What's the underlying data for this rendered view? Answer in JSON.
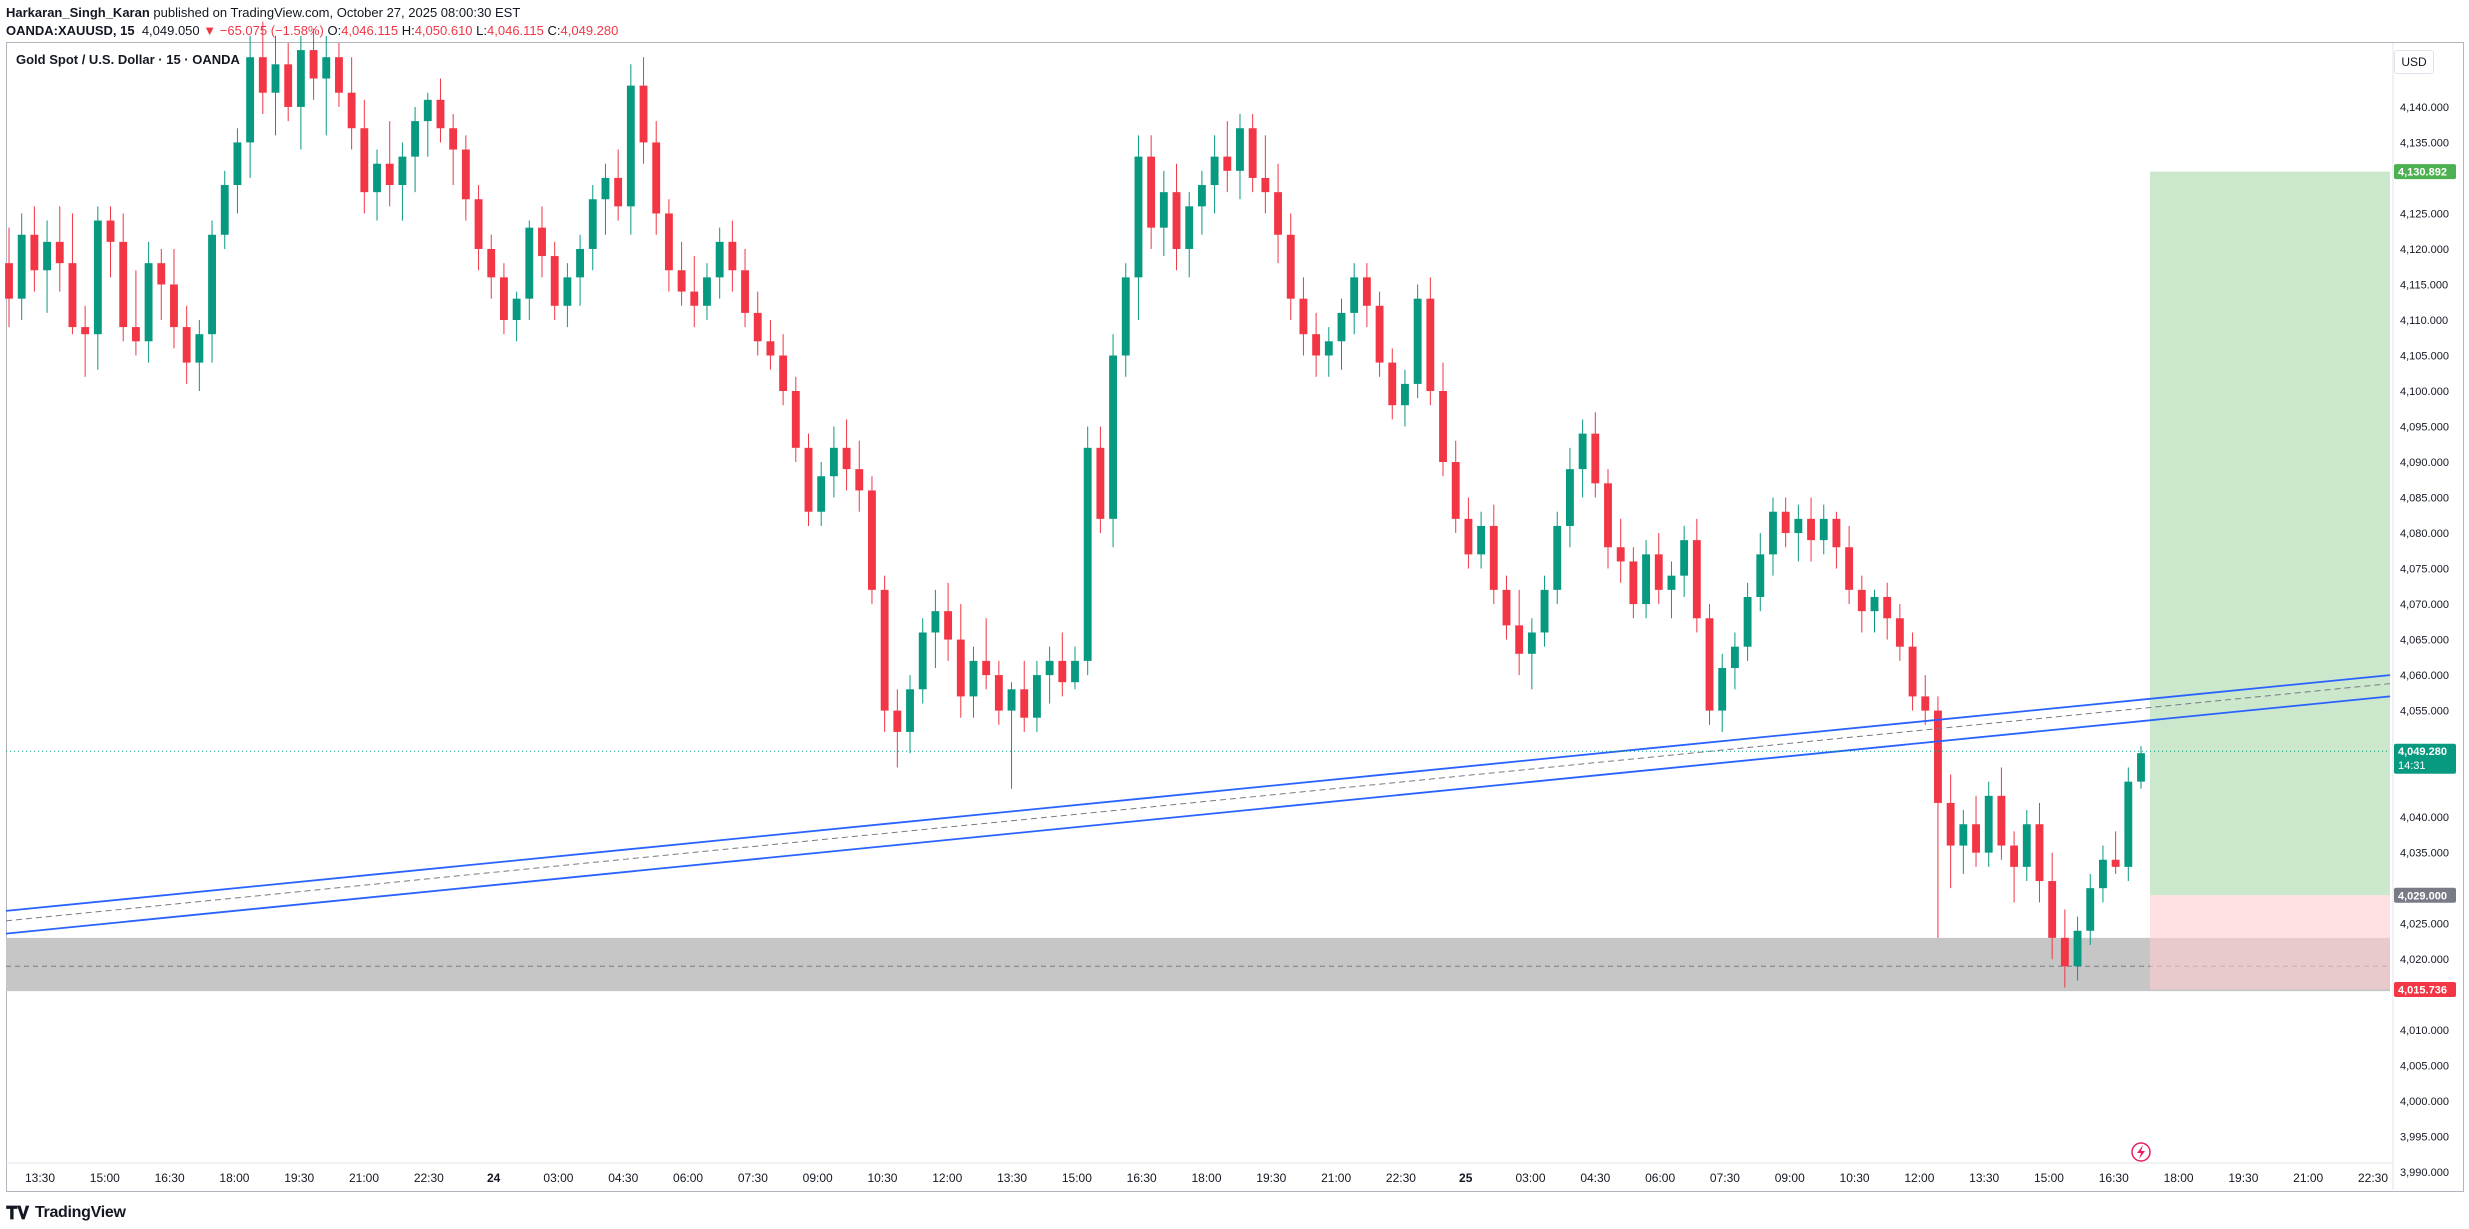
{
  "header": {
    "author": "Harkaran_Singh_Karan",
    "published_text": "published on TradingView.com, October 27, 2025 08:00:30 EST",
    "symbol": "OANDA:XAUUSD, 15",
    "last_price": "4,049.050",
    "change": "▼ −65.075 (−1.58%)",
    "open_label": "O:",
    "open": "4,046.115",
    "high_label": "H:",
    "high": "4,050.610",
    "low_label": "L:",
    "low": "4,046.115",
    "close_label": "C:",
    "close": "4,049.280"
  },
  "legend": {
    "title": "Gold Spot / U.S. Dollar · 15 · OANDA"
  },
  "price_axis": {
    "currency": "USD",
    "ticks": [
      {
        "value": 4140,
        "label": "4,140.000"
      },
      {
        "value": 4135,
        "label": "4,135.000"
      },
      {
        "value": 4125,
        "label": "4,125.000"
      },
      {
        "value": 4120,
        "label": "4,120.000"
      },
      {
        "value": 4115,
        "label": "4,115.000"
      },
      {
        "value": 4110,
        "label": "4,110.000"
      },
      {
        "value": 4105,
        "label": "4,105.000"
      },
      {
        "value": 4100,
        "label": "4,100.000"
      },
      {
        "value": 4095,
        "label": "4,095.000"
      },
      {
        "value": 4090,
        "label": "4,090.000"
      },
      {
        "value": 4085,
        "label": "4,085.000"
      },
      {
        "value": 4080,
        "label": "4,080.000"
      },
      {
        "value": 4075,
        "label": "4,075.000"
      },
      {
        "value": 4070,
        "label": "4,070.000"
      },
      {
        "value": 4065,
        "label": "4,065.000"
      },
      {
        "value": 4060,
        "label": "4,060.000"
      },
      {
        "value": 4055,
        "label": "4,055.000"
      },
      {
        "value": 4040,
        "label": "4,040.000"
      },
      {
        "value": 4035,
        "label": "4,035.000"
      },
      {
        "value": 4025,
        "label": "4,025.000"
      },
      {
        "value": 4020,
        "label": "4,020.000"
      },
      {
        "value": 4010,
        "label": "4,010.000"
      },
      {
        "value": 4005,
        "label": "4,005.000"
      },
      {
        "value": 4000,
        "label": "4,000.000"
      },
      {
        "value": 3995,
        "label": "3,995.000"
      },
      {
        "value": 3990,
        "label": "3,990.000"
      }
    ],
    "badges": [
      {
        "value": 4130.892,
        "label": "4,130.892",
        "color": "#4caf50",
        "sub": ""
      },
      {
        "value": 4049.28,
        "label": "4,049.280",
        "color": "#089981",
        "sub": "14:31"
      },
      {
        "value": 4029.0,
        "label": "4,029.000",
        "color": "#787b86",
        "sub": ""
      },
      {
        "value": 4015.736,
        "label": "4,015.736",
        "color": "#f23645",
        "sub": ""
      }
    ]
  },
  "time_axis": {
    "labels": [
      "13:30",
      "15:00",
      "16:30",
      "18:00",
      "19:30",
      "21:00",
      "22:30",
      "24",
      "03:00",
      "04:30",
      "06:00",
      "07:30",
      "09:00",
      "10:30",
      "12:00",
      "13:30",
      "15:00",
      "16:30",
      "18:00",
      "19:30",
      "21:00",
      "22:30",
      "25",
      "03:00",
      "04:30",
      "06:00",
      "07:30",
      "09:00",
      "10:30",
      "12:00",
      "13:30",
      "15:00",
      "16:30",
      "18:00",
      "19:30",
      "21:00",
      "22:30"
    ],
    "bold": [
      "24",
      "25"
    ]
  },
  "position": {
    "entry": 4029.0,
    "target": 4130.892,
    "stop": 4015.736
  },
  "zone": {
    "top": 4023.0,
    "bottom": 4015.5,
    "mid": 4019.0
  },
  "colors": {
    "up": "#089981",
    "down": "#f23645",
    "trend": "#2962ff",
    "profit": "#c8e6c9",
    "loss": "#ffcdd2",
    "zone": "#c6c6c6"
  },
  "footer": {
    "brand": "TradingView",
    "icon": "tradingview-logo-icon"
  },
  "chart_data": {
    "type": "candlestick",
    "title": "Gold Spot / U.S. Dollar · 15 · OANDA",
    "ylim": [
      3987.5,
      4149.0
    ],
    "candles": [
      [
        4118,
        4123,
        4109,
        4113
      ],
      [
        4113,
        4125,
        4110,
        4122
      ],
      [
        4122,
        4126,
        4114,
        4117
      ],
      [
        4117,
        4124,
        4111,
        4121
      ],
      [
        4121,
        4126,
        4114,
        4118
      ],
      [
        4118,
        4125,
        4108,
        4109
      ],
      [
        4109,
        4112,
        4102,
        4108
      ],
      [
        4108,
        4126,
        4103,
        4124
      ],
      [
        4124,
        4126,
        4116,
        4121
      ],
      [
        4121,
        4125,
        4107,
        4109
      ],
      [
        4109,
        4117,
        4105,
        4107
      ],
      [
        4107,
        4121,
        4104,
        4118
      ],
      [
        4118,
        4120,
        4110,
        4115
      ],
      [
        4115,
        4120,
        4106,
        4109
      ],
      [
        4109,
        4112,
        4101,
        4104
      ],
      [
        4104,
        4110,
        4100,
        4108
      ],
      [
        4108,
        4124,
        4104,
        4122
      ],
      [
        4122,
        4131,
        4120,
        4129
      ],
      [
        4129,
        4137,
        4125,
        4135
      ],
      [
        4135,
        4150,
        4130,
        4147
      ],
      [
        4147,
        4152,
        4139,
        4142
      ],
      [
        4142,
        4150,
        4136,
        4146
      ],
      [
        4146,
        4149,
        4138,
        4140
      ],
      [
        4140,
        4150,
        4134,
        4148
      ],
      [
        4148,
        4151,
        4141,
        4144
      ],
      [
        4144,
        4150,
        4136,
        4147
      ],
      [
        4147,
        4149,
        4140,
        4142
      ],
      [
        4142,
        4147,
        4134,
        4137
      ],
      [
        4137,
        4141,
        4125,
        4128
      ],
      [
        4128,
        4134,
        4124,
        4132
      ],
      [
        4132,
        4138,
        4126,
        4129
      ],
      [
        4129,
        4135,
        4124,
        4133
      ],
      [
        4133,
        4140,
        4128,
        4138
      ],
      [
        4138,
        4142,
        4133,
        4141
      ],
      [
        4141,
        4144,
        4135,
        4137
      ],
      [
        4137,
        4139,
        4129,
        4134
      ],
      [
        4134,
        4136,
        4124,
        4127
      ],
      [
        4127,
        4129,
        4117,
        4120
      ],
      [
        4120,
        4122,
        4113,
        4116
      ],
      [
        4116,
        4118,
        4108,
        4110
      ],
      [
        4110,
        4114,
        4107,
        4113
      ],
      [
        4113,
        4124,
        4110,
        4123
      ],
      [
        4123,
        4126,
        4116,
        4119
      ],
      [
        4119,
        4121,
        4110,
        4112
      ],
      [
        4112,
        4118,
        4109,
        4116
      ],
      [
        4116,
        4122,
        4112,
        4120
      ],
      [
        4120,
        4129,
        4117,
        4127
      ],
      [
        4127,
        4132,
        4122,
        4130
      ],
      [
        4130,
        4134,
        4124,
        4126
      ],
      [
        4126,
        4146,
        4122,
        4143
      ],
      [
        4143,
        4147,
        4132,
        4135
      ],
      [
        4135,
        4138,
        4122,
        4125
      ],
      [
        4125,
        4127,
        4114,
        4117
      ],
      [
        4117,
        4121,
        4112,
        4114
      ],
      [
        4114,
        4119,
        4109,
        4112
      ],
      [
        4112,
        4118,
        4110,
        4116
      ],
      [
        4116,
        4123,
        4113,
        4121
      ],
      [
        4121,
        4124,
        4114,
        4117
      ],
      [
        4117,
        4120,
        4109,
        4111
      ],
      [
        4111,
        4114,
        4105,
        4107
      ],
      [
        4107,
        4110,
        4103,
        4105
      ],
      [
        4105,
        4108,
        4098,
        4100
      ],
      [
        4100,
        4102,
        4090,
        4092
      ],
      [
        4092,
        4094,
        4081,
        4083
      ],
      [
        4083,
        4090,
        4081,
        4088
      ],
      [
        4088,
        4095,
        4085,
        4092
      ],
      [
        4092,
        4096,
        4086,
        4089
      ],
      [
        4089,
        4093,
        4083,
        4086
      ],
      [
        4086,
        4088,
        4070,
        4072
      ],
      [
        4072,
        4074,
        4052,
        4055
      ],
      [
        4055,
        4058,
        4047,
        4052
      ],
      [
        4052,
        4060,
        4049,
        4058
      ],
      [
        4058,
        4068,
        4056,
        4066
      ],
      [
        4066,
        4072,
        4061,
        4069
      ],
      [
        4069,
        4073,
        4062,
        4065
      ],
      [
        4065,
        4070,
        4054,
        4057
      ],
      [
        4057,
        4064,
        4054,
        4062
      ],
      [
        4062,
        4068,
        4058,
        4060
      ],
      [
        4060,
        4062,
        4053,
        4055
      ],
      [
        4055,
        4059,
        4044,
        4058
      ],
      [
        4058,
        4062,
        4052,
        4054
      ],
      [
        4054,
        4062,
        4052,
        4060
      ],
      [
        4060,
        4064,
        4056,
        4062
      ],
      [
        4062,
        4066,
        4057,
        4059
      ],
      [
        4059,
        4064,
        4058,
        4062
      ],
      [
        4062,
        4095,
        4060,
        4092
      ],
      [
        4092,
        4095,
        4080,
        4082
      ],
      [
        4082,
        4108,
        4078,
        4105
      ],
      [
        4105,
        4118,
        4102,
        4116
      ],
      [
        4116,
        4136,
        4110,
        4133
      ],
      [
        4133,
        4136,
        4120,
        4123
      ],
      [
        4123,
        4131,
        4119,
        4128
      ],
      [
        4128,
        4132,
        4117,
        4120
      ],
      [
        4120,
        4128,
        4116,
        4126
      ],
      [
        4126,
        4131,
        4122,
        4129
      ],
      [
        4129,
        4136,
        4125,
        4133
      ],
      [
        4133,
        4138,
        4128,
        4131
      ],
      [
        4131,
        4139,
        4127,
        4137
      ],
      [
        4137,
        4139,
        4128,
        4130
      ],
      [
        4130,
        4136,
        4125,
        4128
      ],
      [
        4128,
        4132,
        4118,
        4122
      ],
      [
        4122,
        4125,
        4110,
        4113
      ],
      [
        4113,
        4116,
        4105,
        4108
      ],
      [
        4108,
        4111,
        4102,
        4105
      ],
      [
        4105,
        4109,
        4102,
        4107
      ],
      [
        4107,
        4113,
        4103,
        4111
      ],
      [
        4111,
        4118,
        4108,
        4116
      ],
      [
        4116,
        4118,
        4109,
        4112
      ],
      [
        4112,
        4114,
        4102,
        4104
      ],
      [
        4104,
        4106,
        4096,
        4098
      ],
      [
        4098,
        4103,
        4095,
        4101
      ],
      [
        4101,
        4115,
        4099,
        4113
      ],
      [
        4113,
        4116,
        4098,
        4100
      ],
      [
        4100,
        4104,
        4088,
        4090
      ],
      [
        4090,
        4093,
        4080,
        4082
      ],
      [
        4082,
        4085,
        4075,
        4077
      ],
      [
        4077,
        4083,
        4075,
        4081
      ],
      [
        4081,
        4084,
        4070,
        4072
      ],
      [
        4072,
        4074,
        4065,
        4067
      ],
      [
        4067,
        4072,
        4060,
        4063
      ],
      [
        4063,
        4068,
        4058,
        4066
      ],
      [
        4066,
        4074,
        4064,
        4072
      ],
      [
        4072,
        4083,
        4070,
        4081
      ],
      [
        4081,
        4092,
        4078,
        4089
      ],
      [
        4089,
        4096,
        4085,
        4094
      ],
      [
        4094,
        4097,
        4085,
        4087
      ],
      [
        4087,
        4089,
        4075,
        4078
      ],
      [
        4078,
        4082,
        4073,
        4076
      ],
      [
        4076,
        4078,
        4068,
        4070
      ],
      [
        4070,
        4079,
        4068,
        4077
      ],
      [
        4077,
        4080,
        4070,
        4072
      ],
      [
        4072,
        4076,
        4068,
        4074
      ],
      [
        4074,
        4081,
        4071,
        4079
      ],
      [
        4079,
        4082,
        4066,
        4068
      ],
      [
        4068,
        4070,
        4053,
        4055
      ],
      [
        4055,
        4063,
        4052,
        4061
      ],
      [
        4061,
        4066,
        4058,
        4064
      ],
      [
        4064,
        4073,
        4062,
        4071
      ],
      [
        4071,
        4080,
        4069,
        4077
      ],
      [
        4077,
        4085,
        4074,
        4083
      ],
      [
        4083,
        4085,
        4078,
        4080
      ],
      [
        4080,
        4084,
        4076,
        4082
      ],
      [
        4082,
        4085,
        4076,
        4079
      ],
      [
        4079,
        4084,
        4077,
        4082
      ],
      [
        4082,
        4083,
        4075,
        4078
      ],
      [
        4078,
        4081,
        4070,
        4072
      ],
      [
        4072,
        4074,
        4066,
        4069
      ],
      [
        4069,
        4072,
        4066,
        4071
      ],
      [
        4071,
        4073,
        4065,
        4068
      ],
      [
        4068,
        4070,
        4062,
        4064
      ],
      [
        4064,
        4066,
        4055,
        4057
      ],
      [
        4057,
        4060,
        4053,
        4055
      ],
      [
        4055,
        4057,
        4023,
        4042
      ],
      [
        4042,
        4046,
        4030,
        4036
      ],
      [
        4036,
        4041,
        4032,
        4039
      ],
      [
        4039,
        4043,
        4033,
        4035
      ],
      [
        4035,
        4045,
        4033,
        4043
      ],
      [
        4043,
        4047,
        4034,
        4036
      ],
      [
        4036,
        4038,
        4028,
        4033
      ],
      [
        4033,
        4041,
        4031,
        4039
      ],
      [
        4039,
        4042,
        4028,
        4031
      ],
      [
        4031,
        4035,
        4020,
        4023
      ],
      [
        4023,
        4027,
        4016,
        4019
      ],
      [
        4019,
        4026,
        4017,
        4024
      ],
      [
        4024,
        4032,
        4022,
        4030
      ],
      [
        4030,
        4036,
        4028,
        4034
      ],
      [
        4034,
        4038,
        4032,
        4033
      ],
      [
        4033,
        4047,
        4031,
        4045
      ],
      [
        4045,
        4050,
        4044,
        4049
      ]
    ],
    "trendlines": [
      {
        "from": 4026.8,
        "to": 4060.0
      },
      {
        "from": 4023.6,
        "to": 4057.0
      },
      {
        "from": 4025.4,
        "to": 4058.8,
        "dashed": true
      }
    ]
  }
}
